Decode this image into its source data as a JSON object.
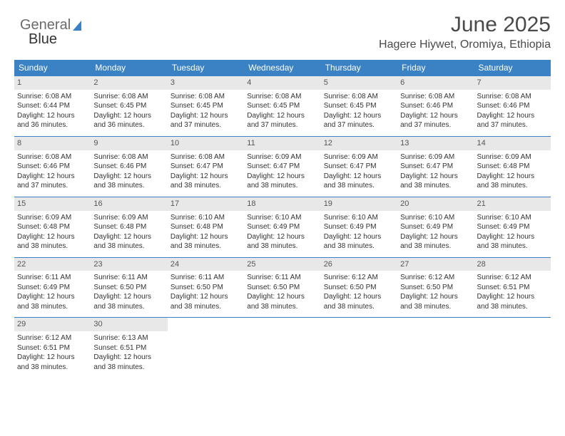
{
  "brand": {
    "part1": "General",
    "part2": "Blue"
  },
  "header": {
    "month": "June 2025",
    "location": "Hagere Hiywet, Oromiya, Ethiopia"
  },
  "colors": {
    "accent": "#3b82c4",
    "header_text": "#ffffff",
    "daybar": "#e8e8e8"
  },
  "weekdays": [
    "Sunday",
    "Monday",
    "Tuesday",
    "Wednesday",
    "Thursday",
    "Friday",
    "Saturday"
  ],
  "days": [
    {
      "n": "1",
      "sr": "6:08 AM",
      "ss": "6:44 PM",
      "dl": "12 hours and 36 minutes."
    },
    {
      "n": "2",
      "sr": "6:08 AM",
      "ss": "6:45 PM",
      "dl": "12 hours and 36 minutes."
    },
    {
      "n": "3",
      "sr": "6:08 AM",
      "ss": "6:45 PM",
      "dl": "12 hours and 37 minutes."
    },
    {
      "n": "4",
      "sr": "6:08 AM",
      "ss": "6:45 PM",
      "dl": "12 hours and 37 minutes."
    },
    {
      "n": "5",
      "sr": "6:08 AM",
      "ss": "6:45 PM",
      "dl": "12 hours and 37 minutes."
    },
    {
      "n": "6",
      "sr": "6:08 AM",
      "ss": "6:46 PM",
      "dl": "12 hours and 37 minutes."
    },
    {
      "n": "7",
      "sr": "6:08 AM",
      "ss": "6:46 PM",
      "dl": "12 hours and 37 minutes."
    },
    {
      "n": "8",
      "sr": "6:08 AM",
      "ss": "6:46 PM",
      "dl": "12 hours and 37 minutes."
    },
    {
      "n": "9",
      "sr": "6:08 AM",
      "ss": "6:46 PM",
      "dl": "12 hours and 38 minutes."
    },
    {
      "n": "10",
      "sr": "6:08 AM",
      "ss": "6:47 PM",
      "dl": "12 hours and 38 minutes."
    },
    {
      "n": "11",
      "sr": "6:09 AM",
      "ss": "6:47 PM",
      "dl": "12 hours and 38 minutes."
    },
    {
      "n": "12",
      "sr": "6:09 AM",
      "ss": "6:47 PM",
      "dl": "12 hours and 38 minutes."
    },
    {
      "n": "13",
      "sr": "6:09 AM",
      "ss": "6:47 PM",
      "dl": "12 hours and 38 minutes."
    },
    {
      "n": "14",
      "sr": "6:09 AM",
      "ss": "6:48 PM",
      "dl": "12 hours and 38 minutes."
    },
    {
      "n": "15",
      "sr": "6:09 AM",
      "ss": "6:48 PM",
      "dl": "12 hours and 38 minutes."
    },
    {
      "n": "16",
      "sr": "6:09 AM",
      "ss": "6:48 PM",
      "dl": "12 hours and 38 minutes."
    },
    {
      "n": "17",
      "sr": "6:10 AM",
      "ss": "6:48 PM",
      "dl": "12 hours and 38 minutes."
    },
    {
      "n": "18",
      "sr": "6:10 AM",
      "ss": "6:49 PM",
      "dl": "12 hours and 38 minutes."
    },
    {
      "n": "19",
      "sr": "6:10 AM",
      "ss": "6:49 PM",
      "dl": "12 hours and 38 minutes."
    },
    {
      "n": "20",
      "sr": "6:10 AM",
      "ss": "6:49 PM",
      "dl": "12 hours and 38 minutes."
    },
    {
      "n": "21",
      "sr": "6:10 AM",
      "ss": "6:49 PM",
      "dl": "12 hours and 38 minutes."
    },
    {
      "n": "22",
      "sr": "6:11 AM",
      "ss": "6:49 PM",
      "dl": "12 hours and 38 minutes."
    },
    {
      "n": "23",
      "sr": "6:11 AM",
      "ss": "6:50 PM",
      "dl": "12 hours and 38 minutes."
    },
    {
      "n": "24",
      "sr": "6:11 AM",
      "ss": "6:50 PM",
      "dl": "12 hours and 38 minutes."
    },
    {
      "n": "25",
      "sr": "6:11 AM",
      "ss": "6:50 PM",
      "dl": "12 hours and 38 minutes."
    },
    {
      "n": "26",
      "sr": "6:12 AM",
      "ss": "6:50 PM",
      "dl": "12 hours and 38 minutes."
    },
    {
      "n": "27",
      "sr": "6:12 AM",
      "ss": "6:50 PM",
      "dl": "12 hours and 38 minutes."
    },
    {
      "n": "28",
      "sr": "6:12 AM",
      "ss": "6:51 PM",
      "dl": "12 hours and 38 minutes."
    },
    {
      "n": "29",
      "sr": "6:12 AM",
      "ss": "6:51 PM",
      "dl": "12 hours and 38 minutes."
    },
    {
      "n": "30",
      "sr": "6:13 AM",
      "ss": "6:51 PM",
      "dl": "12 hours and 38 minutes."
    }
  ],
  "labels": {
    "sunrise": "Sunrise: ",
    "sunset": "Sunset: ",
    "daylight": "Daylight: "
  },
  "layout": {
    "columns": 7,
    "start_offset": 0,
    "total_cells": 35
  }
}
